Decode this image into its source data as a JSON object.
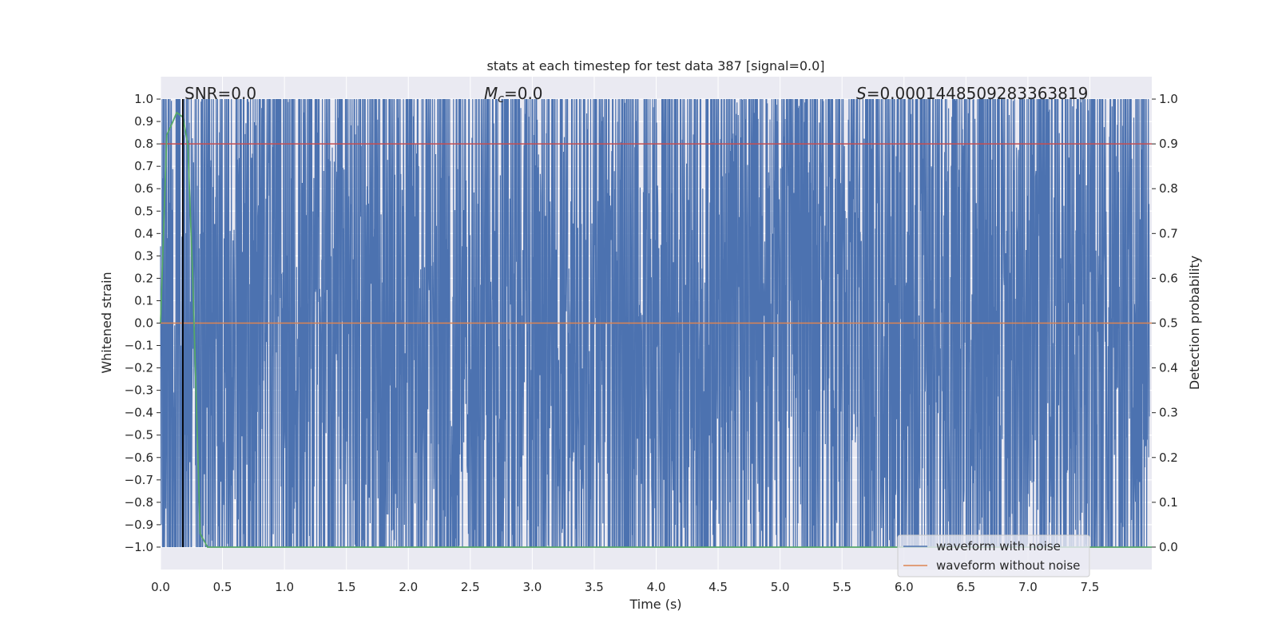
{
  "chart_data": {
    "type": "line",
    "title": "stats at each timestep for test data 387 [signal=0.0]",
    "xlabel": "Time (s)",
    "ylabel_left": "Whitened strain",
    "ylabel_right": "Detection probability",
    "xlim": [
      0.0,
      8.0
    ],
    "ylim_left": [
      -1.1,
      1.1
    ],
    "ylim_right": [
      -0.05,
      1.05
    ],
    "x_ticks": [
      "0.0",
      "0.5",
      "1.0",
      "1.5",
      "2.0",
      "2.5",
      "3.0",
      "3.5",
      "4.0",
      "4.5",
      "5.0",
      "5.5",
      "6.0",
      "6.5",
      "7.0",
      "7.5"
    ],
    "y_ticks_left": [
      "1.0",
      "0.9",
      "0.8",
      "0.7",
      "0.6",
      "0.5",
      "0.4",
      "0.3",
      "0.2",
      "0.1",
      "0.0",
      "−0.1",
      "−0.2",
      "−0.3",
      "−0.4",
      "−0.5",
      "−0.6",
      "−0.7",
      "−0.8",
      "−0.9",
      "−1.0"
    ],
    "y_ticks_right": [
      "1.0",
      "0.9",
      "0.8",
      "0.7",
      "0.6",
      "0.5",
      "0.4",
      "0.3",
      "0.2",
      "0.1",
      "0.0"
    ],
    "grid": true,
    "annotations": {
      "snr": "SNR=0.0",
      "mc_symbol": "M",
      "mc_sub": "c",
      "mc_value": "=0.0",
      "s_symbol": "S",
      "s_value": "=0.0001448509283363819"
    },
    "legend_placement": "lower-right",
    "series": [
      {
        "name": "waveform with noise",
        "axis": "left",
        "color": "#4c72b0",
        "description_values": "dense noise spanning approximately -1.0 to 1.0 across 0.0-8.0 s"
      },
      {
        "name": "waveform without noise",
        "axis": "left",
        "color": "#dd8452",
        "x": [
          0.0,
          8.0
        ],
        "y": [
          0.0,
          0.0
        ]
      },
      {
        "axis": "right",
        "color": "#55a868",
        "x": [
          0.0,
          0.05,
          0.1,
          0.13,
          0.18,
          0.22,
          0.26,
          0.32,
          0.38,
          8.0
        ],
        "y": [
          0.5,
          0.92,
          0.95,
          0.97,
          0.96,
          0.9,
          0.6,
          0.03,
          0.0,
          0.0
        ]
      }
    ],
    "threshold_line": {
      "axis": "right",
      "value": 0.9,
      "color": "#c44e52"
    },
    "marker_line": {
      "x": 0.18,
      "color": "#000000"
    }
  },
  "colors": {
    "axes_bg": "#eaeaf2",
    "grid": "#ffffff",
    "noise": "#4c72b0",
    "clean": "#dd8452",
    "prob": "#55a868",
    "threshold": "#c44e52"
  }
}
